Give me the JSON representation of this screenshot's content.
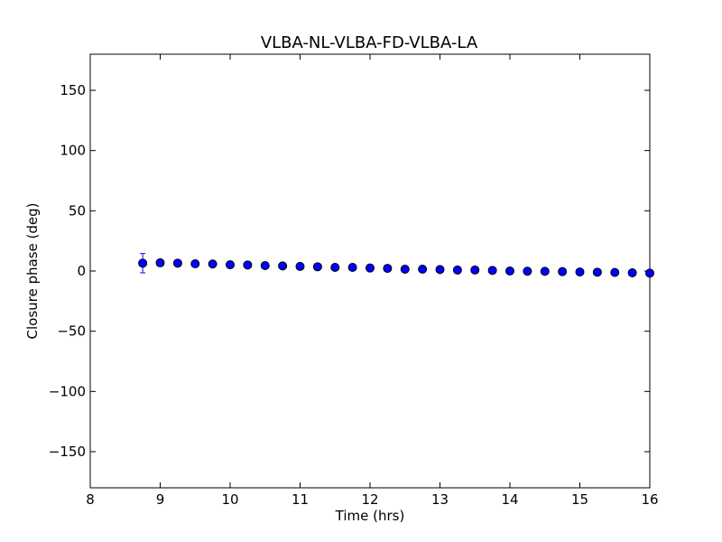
{
  "chart_data": {
    "type": "scatter",
    "title": "VLBA-NL-VLBA-FD-VLBA-LA",
    "xlabel": "Time (hrs)",
    "ylabel": "Closure phase (deg)",
    "xlim": [
      8,
      16
    ],
    "ylim": [
      -180,
      180
    ],
    "xticks": [
      "8",
      "9",
      "10",
      "11",
      "12",
      "13",
      "14",
      "15",
      "16"
    ],
    "yticks": [
      "150",
      "100",
      "50",
      "0",
      "−50",
      "−100",
      "−150"
    ],
    "grid": false,
    "marker_color": "#0000ff",
    "series": [
      {
        "x": [
          8.75,
          9.0,
          9.25,
          9.5,
          9.75,
          10.0,
          10.25,
          10.5,
          10.75,
          11.0,
          11.25,
          11.5,
          11.75,
          12.0,
          12.25,
          12.5,
          12.75,
          13.0,
          13.25,
          13.5,
          13.75,
          14.0,
          14.25,
          14.5,
          14.75,
          15.0,
          15.25,
          15.5,
          15.75,
          16.0
        ],
        "y": [
          6.5,
          6.8,
          6.5,
          6.0,
          5.8,
          5.2,
          5.0,
          4.5,
          4.2,
          3.8,
          3.5,
          3.0,
          3.0,
          2.5,
          2.2,
          1.5,
          1.5,
          1.2,
          0.8,
          0.8,
          0.5,
          0.0,
          -0.2,
          -0.3,
          -0.5,
          -0.8,
          -1.0,
          -1.2,
          -1.5,
          -1.8
        ],
        "yerr": [
          8.0,
          2.5,
          1.5,
          1.5,
          1.5,
          1.5,
          1.5,
          1.5,
          1.5,
          1.5,
          1.5,
          1.5,
          1.5,
          1.5,
          1.5,
          1.5,
          1.5,
          1.5,
          1.5,
          1.5,
          1.5,
          1.5,
          1.5,
          1.5,
          1.5,
          1.5,
          1.5,
          1.5,
          1.5,
          1.5
        ]
      }
    ]
  }
}
